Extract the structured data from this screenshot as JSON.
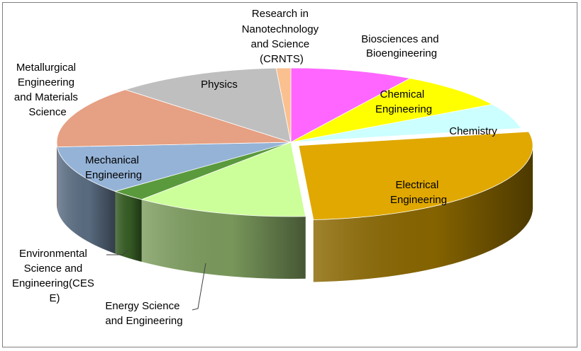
{
  "chart_data": {
    "type": "pie",
    "style": "3d-exploded-pie",
    "title": "",
    "legend": "none",
    "slices": [
      {
        "label": "Biosciences and Bioengineering",
        "value": 8.5,
        "color": "#ff66ff"
      },
      {
        "label": "Chemical Engineering",
        "value": 8.0,
        "color": "#ffff00"
      },
      {
        "label": "Chemistry",
        "value": 5.5,
        "color": "#ccffff"
      },
      {
        "label": "Electrical Engineering",
        "value": 27.0,
        "color": "#e0a800"
      },
      {
        "label": "Energy Science and Engineering",
        "value": 12.0,
        "color": "#ccff99"
      },
      {
        "label": "Environmental Science and Engineering(CESE)",
        "value": 2.5,
        "color": "#5a9a3c"
      },
      {
        "label": "Mechanical Engineering",
        "value": 10.5,
        "color": "#95b3d7"
      },
      {
        "label": "Metallurgical Engineering and Materials Science",
        "value": 13.5,
        "color": "#e6a083"
      },
      {
        "label": "Physics",
        "value": 11.5,
        "color": "#bfbfbf"
      },
      {
        "label": "Research in Nanotechnology and Science (CRNTS)",
        "value": 1.0,
        "color": "#fac08f"
      }
    ]
  },
  "labels": {
    "biosciences": [
      "Biosciences and",
      "Bioengineering"
    ],
    "chemical": [
      "Chemical",
      "Engineering"
    ],
    "chemistry": [
      "Chemistry"
    ],
    "electrical": [
      "Electrical",
      "Engineering"
    ],
    "energy": [
      "Energy Science",
      "and Engineering"
    ],
    "environmental": [
      "Environmental",
      "Science and",
      "Engineering(CES",
      "E)"
    ],
    "mechanical": [
      "Mechanical",
      "Engineering"
    ],
    "metallurgical": [
      "Metallurgical",
      "Engineering",
      "and Materials",
      "Science"
    ],
    "physics": [
      "Physics"
    ],
    "crnts": [
      "Research in",
      "Nanotechnology",
      "and Science",
      "(CRNTS)"
    ]
  }
}
